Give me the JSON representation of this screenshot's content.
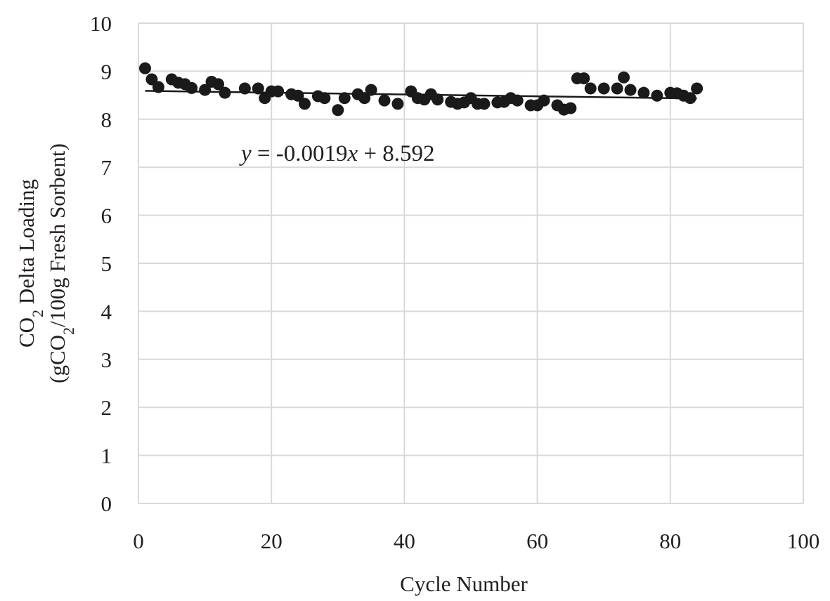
{
  "chart_data": {
    "type": "scatter",
    "xlabel": "Cycle Number",
    "ylabel": [
      [
        {
          "text": "CO"
        },
        {
          "text": "2",
          "sub": true
        },
        {
          "text": " Delta Loading"
        }
      ],
      [
        {
          "text": "(gCO"
        },
        {
          "text": "2",
          "sub": true
        },
        {
          "text": "/100g Fresh Sorbent)"
        }
      ]
    ],
    "x": [
      1,
      2,
      3,
      5,
      6,
      7,
      8,
      10,
      11,
      12,
      13,
      16,
      18,
      19,
      20,
      21,
      23,
      24,
      25,
      27,
      28,
      30,
      31,
      33,
      34,
      35,
      37,
      39,
      41,
      42,
      43,
      44,
      45,
      47,
      48,
      49,
      50,
      51,
      52,
      54,
      55,
      56,
      57,
      59,
      60,
      61,
      63,
      64,
      65,
      66,
      67,
      68,
      70,
      72,
      73,
      74,
      76,
      78,
      80,
      81,
      82,
      83,
      84
    ],
    "values": [
      9.06,
      8.83,
      8.67,
      8.83,
      8.76,
      8.73,
      8.65,
      8.61,
      8.78,
      8.73,
      8.55,
      8.64,
      8.64,
      8.44,
      8.58,
      8.58,
      8.52,
      8.49,
      8.32,
      8.48,
      8.44,
      8.19,
      8.44,
      8.52,
      8.44,
      8.61,
      8.39,
      8.32,
      8.58,
      8.44,
      8.41,
      8.52,
      8.41,
      8.36,
      8.32,
      8.35,
      8.44,
      8.32,
      8.32,
      8.35,
      8.36,
      8.44,
      8.39,
      8.29,
      8.29,
      8.39,
      8.29,
      8.2,
      8.23,
      8.85,
      8.85,
      8.64,
      8.64,
      8.64,
      8.87,
      8.61,
      8.55,
      8.49,
      8.55,
      8.54,
      8.49,
      8.44,
      8.64
    ],
    "color": "#1a1a1a",
    "trendline": {
      "slope": -0.0019,
      "intercept": 8.592
    },
    "equation": [
      {
        "text": "y",
        "italic": true
      },
      {
        "text": " = -0.0019"
      },
      {
        "text": "x",
        "italic": true
      },
      {
        "text": " + 8.592"
      }
    ],
    "xlim": [
      0,
      100
    ],
    "xticks": [
      0,
      20,
      40,
      60,
      80,
      100
    ],
    "ylim": [
      0,
      10
    ],
    "yticks": [
      0,
      1,
      2,
      3,
      4,
      5,
      6,
      7,
      8,
      9,
      10
    ],
    "grid": true
  }
}
